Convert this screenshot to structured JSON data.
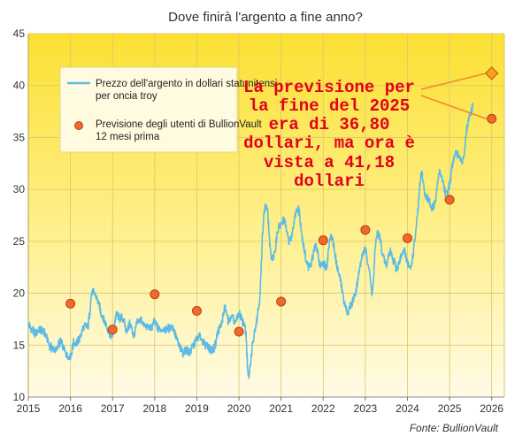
{
  "chart_data": {
    "type": "line",
    "title": "Dove finirà l'argento a fine anno?",
    "xlabel": "",
    "ylabel": "",
    "xlim": [
      2015,
      2026.3
    ],
    "ylim": [
      10,
      45
    ],
    "x_ticks": [
      "2015",
      "2016",
      "2017",
      "2018",
      "2019",
      "2020",
      "2021",
      "2022",
      "2023",
      "2024",
      "2025",
      "2026"
    ],
    "y_ticks": [
      "10",
      "15",
      "20",
      "25",
      "30",
      "35",
      "40",
      "45"
    ],
    "grid": true,
    "legend_position": "top-left",
    "colors": {
      "price": "#5bbbe8",
      "forecast": "#ef6a2a",
      "forecast_edge": "#b8401a",
      "latest": "#f7a11a",
      "annotation": "#e3001b",
      "callout": "#f4842f"
    },
    "series": [
      {
        "name": "Prezzo dell'argento in dollari statunitensi per oncia troy",
        "type": "line",
        "x": [
          2015.0,
          2015.08,
          2015.17,
          2015.25,
          2015.33,
          2015.42,
          2015.5,
          2015.58,
          2015.67,
          2015.75,
          2015.83,
          2015.92,
          2016.0,
          2016.08,
          2016.17,
          2016.25,
          2016.33,
          2016.42,
          2016.5,
          2016.58,
          2016.67,
          2016.75,
          2016.83,
          2016.92,
          2017.0,
          2017.08,
          2017.17,
          2017.25,
          2017.33,
          2017.42,
          2017.5,
          2017.58,
          2017.67,
          2017.75,
          2017.83,
          2017.92,
          2018.0,
          2018.08,
          2018.17,
          2018.25,
          2018.33,
          2018.42,
          2018.5,
          2018.58,
          2018.67,
          2018.75,
          2018.83,
          2018.92,
          2019.0,
          2019.08,
          2019.17,
          2019.25,
          2019.33,
          2019.42,
          2019.5,
          2019.58,
          2019.67,
          2019.75,
          2019.83,
          2019.92,
          2020.0,
          2020.08,
          2020.17,
          2020.22,
          2020.33,
          2020.42,
          2020.5,
          2020.58,
          2020.67,
          2020.75,
          2020.83,
          2020.92,
          2021.0,
          2021.08,
          2021.17,
          2021.25,
          2021.33,
          2021.42,
          2021.5,
          2021.58,
          2021.67,
          2021.75,
          2021.83,
          2021.92,
          2022.0,
          2022.08,
          2022.17,
          2022.25,
          2022.33,
          2022.42,
          2022.5,
          2022.58,
          2022.67,
          2022.75,
          2022.83,
          2022.92,
          2023.0,
          2023.08,
          2023.17,
          2023.25,
          2023.33,
          2023.42,
          2023.5,
          2023.58,
          2023.67,
          2023.75,
          2023.83,
          2023.92,
          2024.0,
          2024.08,
          2024.17,
          2024.25,
          2024.33,
          2024.42,
          2024.5,
          2024.58,
          2024.67,
          2024.75,
          2024.83,
          2024.92,
          2025.0,
          2025.08,
          2025.17,
          2025.25,
          2025.33,
          2025.42,
          2025.5,
          2025.55
        ],
        "y": [
          17.0,
          16.5,
          16.2,
          16.5,
          16.4,
          15.9,
          15.0,
          14.7,
          14.6,
          15.3,
          14.8,
          14.0,
          14.0,
          15.2,
          15.3,
          16.0,
          16.8,
          16.9,
          19.8,
          19.9,
          19.0,
          17.8,
          17.2,
          16.2,
          16.0,
          17.8,
          17.6,
          17.5,
          16.4,
          17.0,
          16.0,
          17.1,
          17.4,
          16.9,
          16.8,
          16.7,
          17.2,
          16.6,
          16.5,
          16.5,
          16.6,
          16.8,
          15.8,
          14.9,
          14.3,
          14.6,
          14.3,
          15.0,
          15.6,
          15.8,
          15.1,
          15.0,
          14.6,
          14.8,
          16.2,
          17.0,
          18.5,
          17.4,
          17.7,
          17.2,
          18.0,
          17.4,
          16.0,
          12.0,
          15.2,
          17.5,
          20.0,
          27.0,
          28.0,
          24.0,
          23.5,
          26.0,
          26.5,
          27.0,
          25.3,
          25.5,
          27.5,
          28.0,
          25.5,
          23.5,
          22.5,
          23.5,
          24.5,
          22.8,
          23.0,
          22.7,
          25.5,
          24.5,
          22.5,
          21.0,
          19.2,
          18.2,
          19.0,
          19.8,
          21.5,
          23.5,
          24.0,
          22.6,
          20.2,
          25.0,
          25.5,
          23.6,
          22.8,
          24.0,
          23.2,
          22.5,
          23.3,
          24.0,
          23.0,
          22.5,
          25.0,
          28.0,
          31.5,
          29.5,
          29.0,
          28.3,
          29.0,
          31.5,
          31.0,
          29.5,
          30.5,
          32.5,
          33.5,
          32.8,
          33.2,
          36.0,
          37.2,
          38.0
        ]
      },
      {
        "name": "Previsione degli utenti di BullionVault 12 mesi prima",
        "type": "scatter",
        "x": [
          2016.0,
          2017.0,
          2018.0,
          2019.0,
          2020.0,
          2021.0,
          2022.0,
          2023.0,
          2024.0,
          2025.0,
          2026.0
        ],
        "y": [
          19.0,
          16.5,
          19.9,
          18.3,
          16.3,
          19.2,
          25.1,
          26.1,
          25.3,
          29.0,
          36.8
        ]
      },
      {
        "name": "",
        "type": "scatter",
        "marker": "diamond",
        "x": [
          2026.0
        ],
        "y": [
          41.18
        ]
      }
    ],
    "annotations": [
      "La previsione per",
      "la fine del 2025",
      "era di 36,80",
      "dollari, ma ora è",
      "vista a 41,18",
      "dollari"
    ],
    "source": "Fonte: BullionVault"
  }
}
